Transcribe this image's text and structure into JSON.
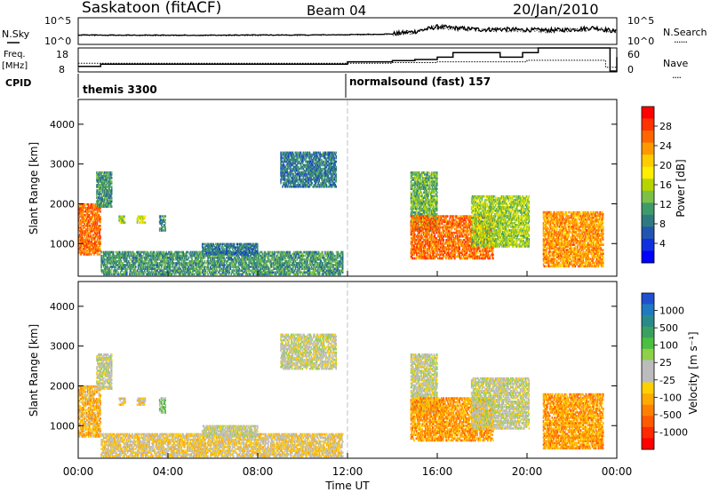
{
  "header": {
    "station": "Saskatoon (fitACF)",
    "beam": "Beam 04",
    "date": "20/Jan/2010"
  },
  "noise_panel": {
    "left_label": "N.Sky",
    "left_ticks": [
      "10^5",
      "10^0"
    ],
    "right_ticks": [
      "10^5",
      "10^0"
    ],
    "right_label": "N.Search",
    "right_legend_line": "......"
  },
  "freq_panel": {
    "left_label_line1": "Freq.",
    "left_label_line2": "[MHz]",
    "left_ticks": [
      "18",
      "8"
    ],
    "right_ticks": [
      "60",
      "0"
    ],
    "right_label": "Nave",
    "right_legend_line": "....",
    "cpid_label": "CPID"
  },
  "cpid_panel": {
    "segments": [
      {
        "name": "themis 3300",
        "start_hour": 0
      },
      {
        "name": "normalsound (fast) 157",
        "start_hour": 11.9
      }
    ]
  },
  "power_panel": {
    "ylabel": "Slant Range [km]",
    "yticks": [
      "4000",
      "3000",
      "2000",
      "1000"
    ],
    "colorbar_label": "Power [dB]",
    "colorbar_ticks": [
      "28",
      "24",
      "20",
      "16",
      "12",
      "8",
      "4"
    ],
    "colorbar_colors": [
      "#ff0000",
      "#ff3300",
      "#ff6600",
      "#ff9900",
      "#ffcc00",
      "#ffee00",
      "#b8d400",
      "#7cc046",
      "#3f9a6a",
      "#2f7a80",
      "#2255b0",
      "#1030e0",
      "#0000ff"
    ]
  },
  "velocity_panel": {
    "ylabel": "Slant Range [km]",
    "yticks": [
      "4000",
      "3000",
      "2000",
      "1000"
    ],
    "colorbar_label": "Velocity [m s⁻¹]",
    "colorbar_ticks": [
      "1000",
      "500",
      "100",
      "25",
      "-25",
      "-100",
      "-500",
      "-1000"
    ],
    "colorbar_colors": [
      "#2050d0",
      "#1f7ac0",
      "#2a8a8a",
      "#3aa060",
      "#4cbf40",
      "#8ed04a",
      "#bcbcbc",
      "#bcbcbc",
      "#ffd000",
      "#ffaa00",
      "#ff8000",
      "#ff5a00",
      "#ff2a00",
      "#ff0000"
    ]
  },
  "xaxis": {
    "ticks": [
      "00:00",
      "04:00",
      "08:00",
      "12:00",
      "16:00",
      "20:00",
      "00:00"
    ],
    "label": "Time UT"
  },
  "chart_data": [
    {
      "type": "line",
      "title": "Saskatoon (fitACF) Beam 04 20/Jan/2010",
      "panel": "noise",
      "xlabel": "Time UT",
      "x_range_hours": [
        0,
        24
      ],
      "y_scale": "log",
      "ylim": [
        1,
        100000
      ],
      "series": [
        {
          "name": "N.Sky",
          "x": [
            0,
            2,
            4,
            6,
            8,
            10,
            12,
            14,
            15,
            16,
            17,
            18,
            19,
            20,
            21,
            22,
            23,
            24
          ],
          "y": [
            60,
            55,
            55,
            55,
            60,
            60,
            70,
            100,
            300,
            3000,
            1500,
            800,
            900,
            700,
            600,
            800,
            2000,
            300
          ]
        },
        {
          "name": "N.Search",
          "x": [
            0,
            2,
            4,
            6,
            8,
            10,
            12,
            14,
            15,
            16,
            17,
            18,
            19,
            20,
            21,
            22,
            23,
            24
          ],
          "y": [
            50,
            45,
            45,
            45,
            50,
            50,
            60,
            80,
            250,
            2500,
            1200,
            700,
            800,
            600,
            500,
            700,
            1500,
            250
          ]
        }
      ]
    },
    {
      "type": "line",
      "panel": "frequency",
      "x_range_hours": [
        0,
        24
      ],
      "series": [
        {
          "name": "Freq. [MHz]",
          "x": [
            0,
            1,
            12,
            13,
            14,
            15,
            16,
            16.7,
            17.7,
            18.8,
            19.8,
            20.5,
            21,
            23.4,
            23.7,
            24
          ],
          "y": [
            10,
            11,
            12,
            12,
            12.5,
            13,
            14,
            16,
            16,
            14,
            16,
            18,
            18,
            18,
            8,
            14
          ]
        },
        {
          "name": "Nave",
          "x": [
            0,
            12,
            14,
            16,
            18,
            20,
            21,
            23.5,
            24
          ],
          "y": [
            20,
            20,
            22,
            24,
            24,
            28,
            28,
            10,
            20
          ]
        }
      ]
    },
    {
      "type": "heatmap",
      "panel": "power",
      "x_range_hours": [
        0,
        24
      ],
      "ylabel": "Slant Range [km]",
      "ylim": [
        180,
        4600
      ],
      "colorbar": {
        "label": "Power [dB]",
        "range": [
          0,
          30
        ]
      },
      "regions": [
        {
          "t": [
            0.0,
            1.0
          ],
          "r": [
            700,
            2000
          ],
          "value": 24
        },
        {
          "t": [
            0.8,
            1.5
          ],
          "r": [
            1900,
            2800
          ],
          "value": 10
        },
        {
          "t": [
            1.8,
            2.1
          ],
          "r": [
            1500,
            1700
          ],
          "value": 14
        },
        {
          "t": [
            2.6,
            3.0
          ],
          "r": [
            1500,
            1700
          ],
          "value": 16
        },
        {
          "t": [
            3.6,
            3.9
          ],
          "r": [
            1300,
            1700
          ],
          "value": 10
        },
        {
          "t": [
            1.0,
            11.8
          ],
          "r": [
            200,
            800
          ],
          "value": 10
        },
        {
          "t": [
            5.5,
            8.0
          ],
          "r": [
            700,
            1000
          ],
          "value": 8
        },
        {
          "t": [
            9.0,
            11.5
          ],
          "r": [
            2400,
            3300
          ],
          "value": 8
        },
        {
          "t": [
            14.8,
            16.0
          ],
          "r": [
            1300,
            2800
          ],
          "value": 12
        },
        {
          "t": [
            14.8,
            18.5
          ],
          "r": [
            600,
            1700
          ],
          "value": 24
        },
        {
          "t": [
            17.5,
            20.1
          ],
          "r": [
            900,
            2200
          ],
          "value": 14
        },
        {
          "t": [
            20.7,
            23.4
          ],
          "r": [
            400,
            1800
          ],
          "value": 22
        }
      ]
    },
    {
      "type": "heatmap",
      "panel": "velocity",
      "x_range_hours": [
        0,
        24
      ],
      "ylabel": "Slant Range [km]",
      "ylim": [
        180,
        4600
      ],
      "colorbar": {
        "label": "Velocity [m s⁻¹]",
        "range": [
          -1000,
          1000
        ]
      },
      "regions": [
        {
          "t": [
            0.0,
            1.0
          ],
          "r": [
            700,
            2000
          ],
          "value": -300
        },
        {
          "t": [
            0.8,
            1.5
          ],
          "r": [
            1900,
            2800
          ],
          "value": 0
        },
        {
          "t": [
            1.8,
            2.1
          ],
          "r": [
            1500,
            1700
          ],
          "value": -200
        },
        {
          "t": [
            2.6,
            3.0
          ],
          "r": [
            1500,
            1700
          ],
          "value": -150
        },
        {
          "t": [
            3.6,
            3.9
          ],
          "r": [
            1300,
            1700
          ],
          "value": 200
        },
        {
          "t": [
            1.0,
            11.8
          ],
          "r": [
            200,
            800
          ],
          "value": -150
        },
        {
          "t": [
            5.5,
            8.0
          ],
          "r": [
            700,
            1000
          ],
          "value": 0
        },
        {
          "t": [
            9.0,
            11.5
          ],
          "r": [
            2400,
            3300
          ],
          "value": 0
        },
        {
          "t": [
            14.8,
            16.0
          ],
          "r": [
            1300,
            2800
          ],
          "value": 0
        },
        {
          "t": [
            14.8,
            18.5
          ],
          "r": [
            600,
            1700
          ],
          "value": -400
        },
        {
          "t": [
            17.5,
            20.1
          ],
          "r": [
            900,
            2200
          ],
          "value": 0
        },
        {
          "t": [
            20.7,
            23.4
          ],
          "r": [
            400,
            1800
          ],
          "value": -400
        }
      ]
    }
  ]
}
